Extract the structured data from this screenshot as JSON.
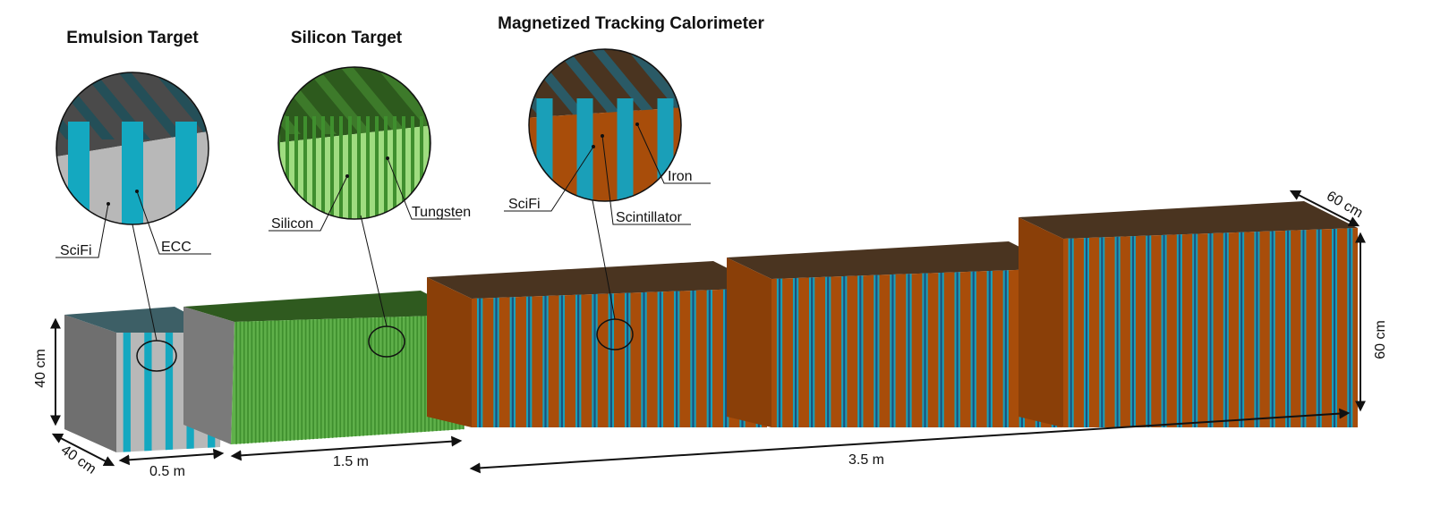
{
  "sections": [
    {
      "title": "Emulsion Target",
      "labels": [
        "SciFi",
        "ECC"
      ]
    },
    {
      "title": "Silicon Target",
      "labels": [
        "Silicon",
        "Tungsten"
      ]
    },
    {
      "title": "Magnetized Tracking Calorimeter",
      "labels": [
        "SciFi",
        "Scintillator",
        "Iron"
      ]
    }
  ],
  "dimensions": {
    "et_height": "40 cm",
    "et_depth": "40 cm",
    "et_length": "0.5 m",
    "st_length": "1.5 m",
    "mtc_length": "3.5 m",
    "mtc_width": "60 cm",
    "mtc_height": "60 cm"
  }
}
